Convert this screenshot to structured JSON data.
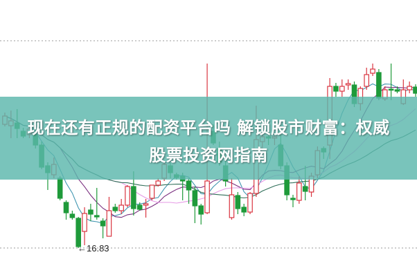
{
  "title": {
    "line1": "现在还有正规的配资平台吗 解锁股市财富：权威",
    "line2": "股票投资网指南"
  },
  "colors": {
    "up": "#d9343f",
    "down": "#1f9a3a",
    "banner": "#5cb7ac",
    "ma5": "#3f95b0",
    "ma10": "#7a2f7f",
    "ma20": "#e69ae6",
    "ma30": "#2f6e58",
    "grid": "#9a9a9a"
  },
  "chart_data": {
    "type": "candlestick",
    "ylim": [
      15.99,
      24.01
    ],
    "grid": "dotted horizontal",
    "annotations": [
      {
        "text": "←16.83",
        "value": 16.83
      }
    ],
    "moving_averages": [
      5,
      10,
      20,
      30
    ],
    "ohlc": [
      [
        20.41,
        20.75,
        20.35,
        20.65
      ],
      [
        20.37,
        20.81,
        20.01,
        20.51
      ],
      [
        20.45,
        20.85,
        20.01,
        20.29
      ],
      [
        20.21,
        20.31,
        20.01,
        20.07
      ],
      [
        20.11,
        20.41,
        20.01,
        20.27
      ],
      [
        20.11,
        20.31,
        19.71,
        19.81
      ],
      [
        19.81,
        19.91,
        19.11,
        19.17
      ],
      [
        19.21,
        19.31,
        18.51,
        19.01
      ],
      [
        18.95,
        19.45,
        18.85,
        19.25
      ],
      [
        18.85,
        18.91,
        18.21,
        18.27
      ],
      [
        18.15,
        18.21,
        17.65,
        17.85
      ],
      [
        17.81,
        17.91,
        17.65,
        17.71
      ],
      [
        17.69,
        17.73,
        16.83,
        16.87
      ],
      [
        17.31,
        18.01,
        16.91,
        17.83
      ],
      [
        17.93,
        18.11,
        17.61,
        17.81
      ],
      [
        17.77,
        18.57,
        17.65,
        17.73
      ],
      [
        17.61,
        17.69,
        17.11,
        17.47
      ],
      [
        17.17,
        18.31,
        17.17,
        17.91
      ],
      [
        18.01,
        18.11,
        17.85,
        17.91
      ],
      [
        17.91,
        18.25,
        17.81,
        18.07
      ],
      [
        18.07,
        18.65,
        18.01,
        18.61
      ],
      [
        18.61,
        19.05,
        17.77,
        17.97
      ],
      [
        18.07,
        18.15,
        17.91,
        17.95
      ],
      [
        18.07,
        18.25,
        17.71,
        18.11
      ],
      [
        18.27,
        18.65,
        18.21,
        18.65
      ],
      [
        18.65,
        18.85,
        18.61,
        18.77
      ],
      [
        18.85,
        19.31,
        18.77,
        19.25
      ],
      [
        19.21,
        19.29,
        18.85,
        19.01
      ],
      [
        18.95,
        19.01,
        18.81,
        18.87
      ],
      [
        18.91,
        19.01,
        18.21,
        18.77
      ],
      [
        18.77,
        18.85,
        18.11,
        18.51
      ],
      [
        18.49,
        18.61,
        17.55,
        18.05
      ],
      [
        18.05,
        18.11,
        17.51,
        17.81
      ],
      [
        17.85,
        22.17,
        17.81,
        18.77
      ],
      [
        20.21,
        20.41,
        19.81,
        19.87
      ],
      [
        19.71,
        19.91,
        19.21,
        19.31
      ],
      [
        19.21,
        19.41,
        18.61,
        18.77
      ],
      [
        17.71,
        18.85,
        17.65,
        18.37
      ],
      [
        18.35,
        18.45,
        17.81,
        17.97
      ],
      [
        18.01,
        18.11,
        17.75,
        17.87
      ],
      [
        17.87,
        18.45,
        17.81,
        18.41
      ],
      [
        18.41,
        20.95,
        18.31,
        19.97
      ],
      [
        19.91,
        20.11,
        19.71,
        20.05
      ],
      [
        20.05,
        20.11,
        19.81,
        20.01
      ],
      [
        20.01,
        20.11,
        19.81,
        20.05
      ],
      [
        19.81,
        20.11,
        19.11,
        19.21
      ],
      [
        19.21,
        19.31,
        18.21,
        18.37
      ],
      [
        18.27,
        18.37,
        18.01,
        18.23
      ],
      [
        18.21,
        18.91,
        18.11,
        18.71
      ],
      [
        18.61,
        19.21,
        18.21,
        18.47
      ],
      [
        18.45,
        19.01,
        18.31,
        18.91
      ],
      [
        18.95,
        19.77,
        18.85,
        19.65
      ],
      [
        19.71,
        19.77,
        19.41,
        19.61
      ],
      [
        19.81,
        21.75,
        19.41,
        21.51
      ],
      [
        21.51,
        21.61,
        21.21,
        21.37
      ],
      [
        21.37,
        21.71,
        21.21,
        21.51
      ],
      [
        21.55,
        21.71,
        21.41,
        21.59
      ],
      [
        21.55,
        21.65,
        20.91,
        21.01
      ],
      [
        21.01,
        21.51,
        20.81,
        21.45
      ],
      [
        21.51,
        22.05,
        21.41,
        21.85
      ],
      [
        21.89,
        22.17,
        21.81,
        22.01
      ],
      [
        21.91,
        22.01,
        21.11,
        21.17
      ],
      [
        21.15,
        21.51,
        21.09,
        21.41
      ],
      [
        21.43,
        22.17,
        21.11,
        21.41
      ],
      [
        21.41,
        21.51,
        21.31,
        21.37
      ],
      [
        21.01,
        21.71,
        20.97,
        21.41
      ],
      [
        21.41,
        21.65,
        21.31,
        21.51
      ],
      [
        21.49,
        21.57,
        21.21,
        21.31
      ]
    ]
  }
}
